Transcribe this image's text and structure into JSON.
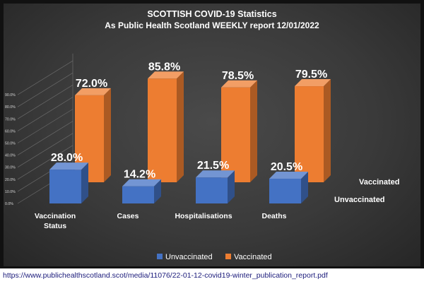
{
  "chart_data": {
    "type": "bar",
    "title": "SCOTTISH COVID-19 Statistics",
    "subtitle": "As Public Health Scotland WEEKLY report 12/01/2022",
    "categories": [
      "Vaccination Status",
      "Cases",
      "Hospitalisations",
      "Deaths"
    ],
    "category_lines": [
      [
        "Vaccination",
        "Status"
      ],
      [
        "Cases"
      ],
      [
        "Hospitalisations"
      ],
      [
        "Deaths"
      ]
    ],
    "series": [
      {
        "name": "Unvaccinated",
        "values": [
          28.0,
          14.2,
          21.5,
          20.5
        ],
        "labels": [
          "28.0%",
          "14.2%",
          "21.5%",
          "20.5%"
        ],
        "color": "#4472c4"
      },
      {
        "name": "Vaccinated",
        "values": [
          72.0,
          85.8,
          78.5,
          79.5
        ],
        "labels": [
          "72.0%",
          "85.8%",
          "78.5%",
          "79.5%"
        ],
        "color": "#ed7d31"
      }
    ],
    "yticks": [
      "0.0%",
      "10.0%",
      "20.0%",
      "30.0%",
      "40.0%",
      "50.0%",
      "60.0%",
      "70.0%",
      "80.0%",
      "90.0%"
    ],
    "ylim": [
      0,
      100
    ],
    "depth_labels": [
      "Vaccinated",
      "Unvaccinated"
    ],
    "legend": {
      "position": "bottom",
      "entries": [
        "Unvaccinated",
        "Vaccinated"
      ]
    }
  },
  "source": {
    "url": "https://www.publichealthscotland.scot/media/11076/22-01-12-covid19-winter_publication_report.pdf"
  }
}
